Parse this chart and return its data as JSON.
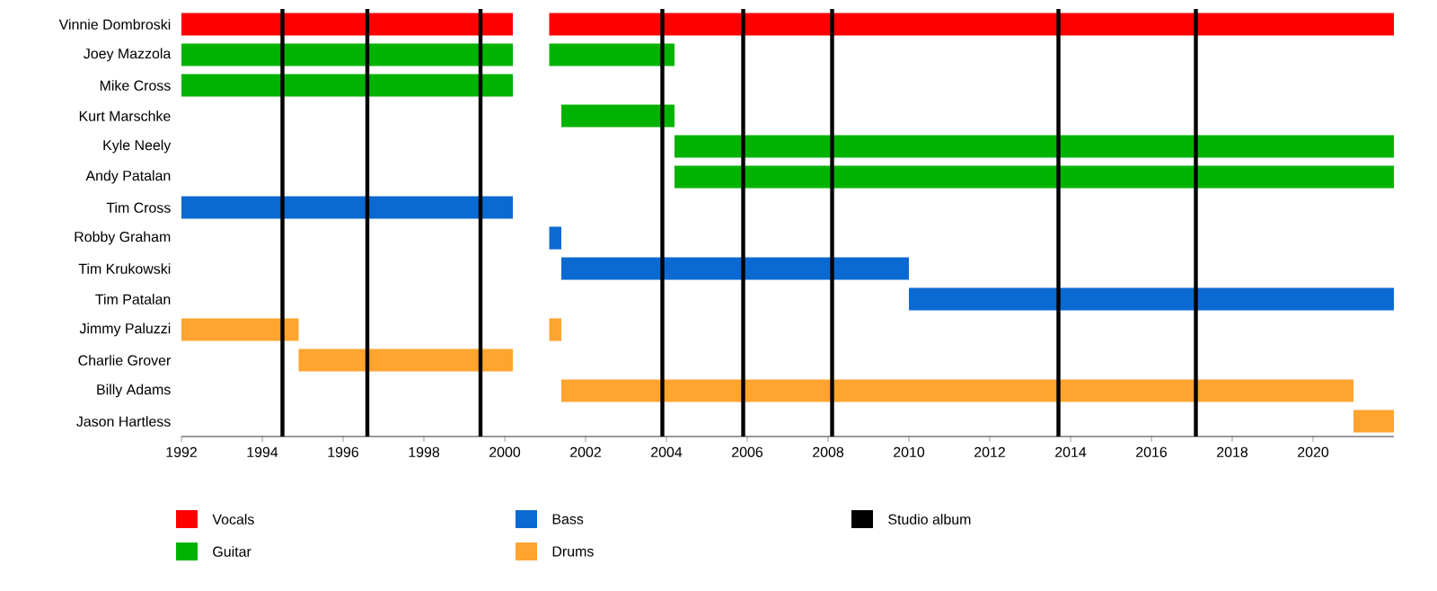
{
  "chart_data": {
    "type": "bar",
    "orientation": "horizontal",
    "categories": [
      "Vinnie Dombroski",
      "Joey Mazzola",
      "Mike Cross",
      "Kurt Marschke",
      "Kyle Neely",
      "Andy Patalan",
      "Tim Cross",
      "Robby Graham",
      "Tim Krukowski",
      "Tim Patalan",
      "Jimmy Paluzzi",
      "Charlie Grover",
      "Billy Adams",
      "Jason Hartless"
    ],
    "series": [
      {
        "name": "Vocals",
        "color": "#ff0000",
        "base": [
          1992,
          null,
          null,
          null,
          null,
          null,
          null,
          null,
          null,
          null,
          null,
          null,
          null,
          null
        ],
        "values": [
          8.2,
          null,
          null,
          null,
          null,
          null,
          null,
          null,
          null,
          null,
          null,
          null,
          null,
          null
        ]
      },
      {
        "color": "#ff0000",
        "base": [
          2001.1,
          null,
          null,
          null,
          null,
          null,
          null,
          null,
          null,
          null,
          null,
          null,
          null,
          null
        ],
        "values": [
          20.9,
          null,
          null,
          null,
          null,
          null,
          null,
          null,
          null,
          null,
          null,
          null,
          null,
          null
        ]
      },
      {
        "name": "Guitar",
        "color": "#00b300",
        "base": [
          null,
          1992,
          1992,
          2001.4,
          2004.2,
          2004.2,
          null,
          null,
          null,
          null,
          null,
          null,
          null,
          null
        ],
        "values": [
          null,
          8.2,
          8.2,
          2.8,
          17.8,
          17.8,
          null,
          null,
          null,
          null,
          null,
          null,
          null,
          null
        ]
      },
      {
        "color": "#00b300",
        "base": [
          null,
          2001.1,
          null,
          null,
          null,
          null,
          null,
          null,
          null,
          null,
          null,
          null,
          null,
          null
        ],
        "values": [
          null,
          3.1,
          null,
          null,
          null,
          null,
          null,
          null,
          null,
          null,
          null,
          null,
          null,
          null
        ]
      },
      {
        "name": "Bass",
        "color": "#0b6ad1",
        "base": [
          null,
          null,
          null,
          null,
          null,
          null,
          1992,
          2001.1,
          2001.4,
          2010,
          null,
          null,
          null,
          null
        ],
        "values": [
          null,
          null,
          null,
          null,
          null,
          null,
          8.2,
          0.3,
          8.6,
          12,
          null,
          null,
          null,
          null
        ]
      },
      {
        "name": "Drums",
        "color": "#ffa42f",
        "base": [
          null,
          null,
          null,
          null,
          null,
          null,
          null,
          null,
          null,
          null,
          1992,
          1994.9,
          2001.4,
          2021
        ],
        "values": [
          null,
          null,
          null,
          null,
          null,
          null,
          null,
          null,
          null,
          null,
          2.9,
          5.3,
          19.6,
          1
        ]
      },
      {
        "color": "#ffa42f",
        "base": [
          null,
          null,
          null,
          null,
          null,
          null,
          null,
          null,
          null,
          null,
          2001.1,
          null,
          null,
          null
        ],
        "values": [
          null,
          null,
          null,
          null,
          null,
          null,
          null,
          null,
          null,
          null,
          0.3,
          null,
          null,
          null
        ]
      }
    ],
    "xlim": [
      1992,
      2022
    ],
    "xticks": [
      1992,
      1994,
      1996,
      1998,
      2000,
      2002,
      2004,
      2006,
      2008,
      2010,
      2012,
      2014,
      2016,
      2018,
      2020
    ],
    "ref_lines": [
      {
        "axis": "x",
        "value": 1994.5,
        "label": "Studio album",
        "color": "#000000"
      },
      {
        "axis": "x",
        "value": 1996.6,
        "color": "#000000"
      },
      {
        "axis": "x",
        "value": 1999.4,
        "color": "#000000"
      },
      {
        "axis": "x",
        "value": 2003.9,
        "color": "#000000"
      },
      {
        "axis": "x",
        "value": 2005.9,
        "color": "#000000"
      },
      {
        "axis": "x",
        "value": 2008.1,
        "color": "#000000"
      },
      {
        "axis": "x",
        "value": 2013.7,
        "color": "#000000"
      },
      {
        "axis": "x",
        "value": 2017.1,
        "color": "#000000"
      }
    ],
    "legend": "bottom"
  }
}
